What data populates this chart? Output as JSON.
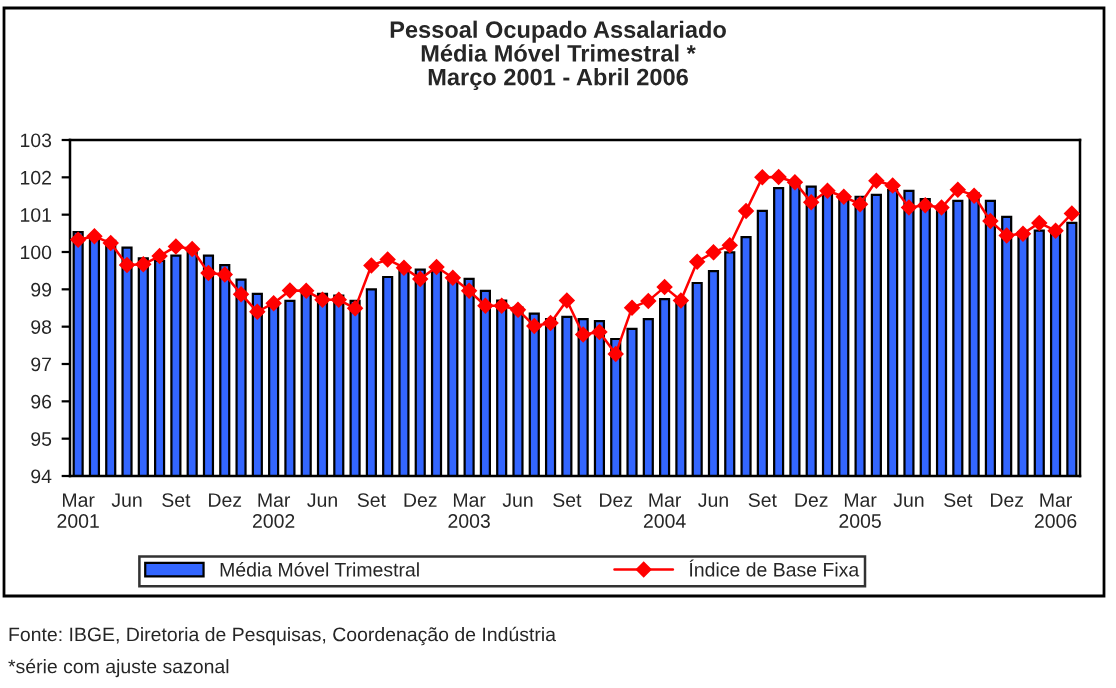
{
  "chart_data": {
    "type": "bar",
    "title": "Pessoal Ocupado Assalariado\nMédia Móvel Trimestral *\nMarço 2001 - Abril 2006",
    "categories": [
      "Mar\n2001",
      null,
      null,
      "Jun",
      null,
      null,
      "Set",
      null,
      null,
      "Dez",
      null,
      null,
      "Mar\n2002",
      null,
      null,
      "Jun",
      null,
      null,
      "Set",
      null,
      null,
      "Dez",
      null,
      null,
      "Mar\n2003",
      null,
      null,
      "Jun",
      null,
      null,
      "Set",
      null,
      null,
      "Dez",
      null,
      null,
      "Mar\n2004",
      null,
      null,
      "Jun",
      null,
      null,
      "Set",
      null,
      null,
      "Dez",
      null,
      null,
      "Mar\n2005",
      null,
      null,
      "Jun",
      null,
      null,
      "Set",
      null,
      null,
      "Dez",
      null,
      null,
      "Mar\n2006",
      null
    ],
    "series": [
      {
        "name": "Média Móvel Trimestral",
        "color": "#3366ff",
        "values": [
          100.53,
          100.44,
          100.3,
          100.12,
          99.83,
          99.76,
          99.9,
          99.99,
          99.9,
          99.65,
          99.26,
          98.88,
          98.65,
          98.69,
          98.99,
          98.88,
          98.83,
          98.69,
          99.0,
          99.33,
          99.6,
          99.53,
          99.49,
          99.33,
          99.28,
          98.96,
          98.7,
          98.51,
          98.35,
          98.2,
          98.26,
          98.2,
          98.15,
          97.67,
          97.94,
          98.2,
          98.74,
          98.7,
          99.17,
          99.49,
          99.99,
          100.4,
          101.1,
          101.71,
          101.78,
          101.75,
          101.6,
          101.51,
          101.48,
          101.53,
          101.66,
          101.64,
          101.42,
          101.16,
          101.37,
          101.57,
          101.37,
          100.94,
          100.53,
          100.57,
          100.57,
          100.78
        ]
      },
      {
        "name": "Índice de Base Fixa",
        "type": "line",
        "color": "#ff0000",
        "marker": "diamond",
        "values": [
          100.33,
          100.42,
          100.24,
          99.65,
          99.67,
          99.89,
          100.15,
          100.08,
          99.44,
          99.4,
          98.87,
          98.4,
          98.63,
          98.97,
          98.96,
          98.72,
          98.72,
          98.49,
          99.64,
          99.8,
          99.58,
          99.28,
          99.6,
          99.31,
          98.96,
          98.56,
          98.56,
          98.45,
          98.02,
          98.1,
          98.7,
          97.79,
          97.86,
          97.27,
          98.51,
          98.69,
          99.06,
          98.7,
          99.74,
          99.99,
          100.18,
          101.1,
          102.0,
          102.01,
          101.87,
          101.33,
          101.64,
          101.48,
          101.28,
          101.91,
          101.78,
          101.19,
          101.25,
          101.19,
          101.67,
          101.51,
          100.83,
          100.44,
          100.49,
          100.78,
          100.57,
          101.03
        ]
      }
    ],
    "ylim": [
      94,
      103
    ],
    "yticks": [
      94,
      95,
      96,
      97,
      98,
      99,
      100,
      101,
      102,
      103
    ],
    "grid": false,
    "legend": "bottom",
    "annotations": [
      "Fonte: IBGE, Diretoria de Pesquisas, Coordenação de Indústria",
      "*série com ajuste sazonal"
    ]
  }
}
